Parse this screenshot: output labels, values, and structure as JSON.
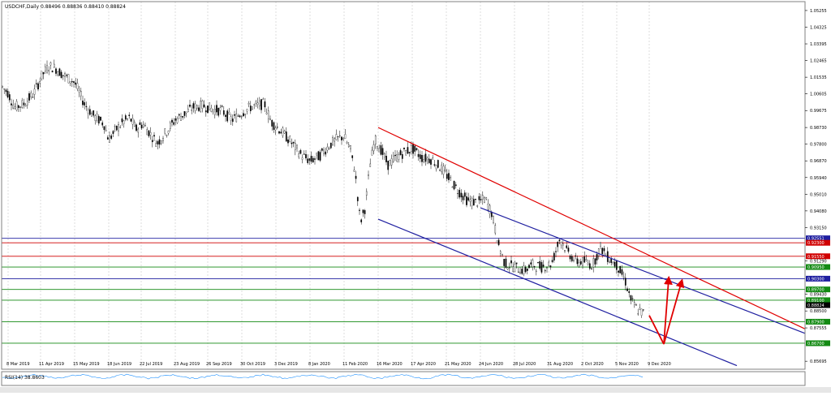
{
  "chart_data": {
    "type": "candlestick",
    "symbol_header": "USDCHF,Daily  0.88496 0.88836 0.88410 0.88824",
    "indicator_label": "RSI(14) 38.8603",
    "y_tick_labels": [
      "1.05255",
      "1.04325",
      "1.03395",
      "1.02465",
      "1.01535",
      "1.00605",
      "0.99675",
      "0.98730",
      "0.97800",
      "0.96870",
      "0.95940",
      "0.95010",
      "0.94080",
      "0.93150",
      "0.91290",
      "0.89430",
      "0.88500",
      "0.87555",
      "0.85695"
    ],
    "y_tick_values": [
      1.05255,
      1.04325,
      1.03395,
      1.02465,
      1.01535,
      1.00605,
      0.99675,
      0.9873,
      0.978,
      0.9687,
      0.9594,
      0.9501,
      0.9408,
      0.9315,
      0.9129,
      0.8943,
      0.885,
      0.87555,
      0.85695
    ],
    "x_tick_labels": [
      "8 Mar 2019",
      "11 Apr 2019",
      "15 May 2019",
      "18 Jun 2019",
      "22 Jul 2019",
      "23 Aug 2019",
      "26 Sep 2019",
      "30 Oct 2019",
      "3 Dec 2019",
      "8 Jan 2020",
      "11 Feb 2020",
      "16 Mar 2020",
      "17 Apr 2020",
      "21 May 2020",
      "24 Jun 2020",
      "28 Jul 2020",
      "31 Aug 2020",
      "2 Oct 2020",
      "5 Nov 2020",
      "9 Dec 2020"
    ],
    "ylim": [
      0.8525,
      1.0575
    ],
    "level_labels": [
      {
        "label": "0.92551",
        "value": 0.92551,
        "color": "#1f1fa0"
      },
      {
        "label": "0.92300",
        "value": 0.923,
        "color": "#d00000"
      },
      {
        "label": "0.91550",
        "value": 0.9155,
        "color": "#d00000"
      },
      {
        "label": "0.90950",
        "value": 0.9095,
        "color": "#138a13"
      },
      {
        "label": "0.90300",
        "value": 0.903,
        "color": "#1f1fa0"
      },
      {
        "label": "0.89700",
        "value": 0.897,
        "color": "#138a13"
      },
      {
        "label": "0.89100",
        "value": 0.891,
        "color": "#138a13"
      },
      {
        "label": "0.88824",
        "value": 0.88824,
        "color": "#000000"
      },
      {
        "label": "0.87900",
        "value": 0.879,
        "color": "#138a13"
      },
      {
        "label": "0.86700",
        "value": 0.867,
        "color": "#138a13"
      }
    ],
    "channel_lines": [
      {
        "color": "#e00000",
        "from": [
          "16 Mar 2020",
          0.9873
        ],
        "to": [
          "2021",
          0.875
        ]
      },
      {
        "color": "#1f1fa0",
        "from": [
          "24 Jun 2020",
          0.9425
        ],
        "to": [
          "2021",
          0.8725
        ]
      },
      {
        "color": "#1f1fa0",
        "from": [
          "16 Mar 2020",
          0.9362
        ],
        "to": [
          "2021",
          0.8595
        ]
      }
    ],
    "arrows": [
      {
        "color": "#e00000",
        "from": [
          "9 Dec 2020",
          0.8825
        ],
        "to": [
          "16 Dec 2020",
          0.8665
        ]
      },
      {
        "color": "#e00000",
        "from": [
          "16 Dec 2020",
          0.8665
        ],
        "to": [
          "23 Dec 2020",
          0.903
        ]
      },
      {
        "color": "#e00000",
        "from": [
          "16 Dec 2020",
          0.8665
        ],
        "to": [
          "30 Dec 2020",
          0.9015
        ]
      }
    ],
    "grid": true,
    "colors": {
      "background": "#ffffff",
      "candles": "#000000",
      "grid": "#c8c8c8"
    }
  }
}
